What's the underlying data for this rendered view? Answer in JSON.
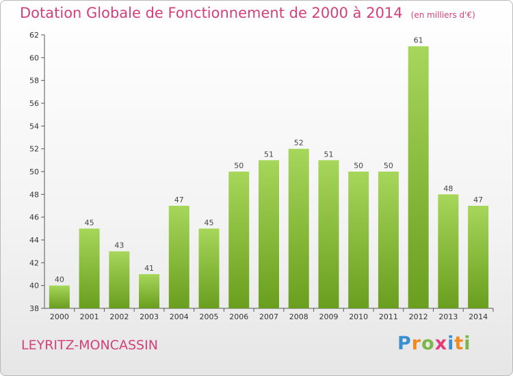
{
  "header": {
    "title": "Dotation Globale de Fonctionnement de 2000 à 2014",
    "unit": "(en milliers d'€)"
  },
  "footer": {
    "commune": "LEYRITZ-MONCASSIN",
    "logo": {
      "letters": [
        "P",
        "r",
        "o",
        "x",
        "i",
        "t",
        "i"
      ],
      "colors": [
        "#3a8fd1",
        "#f08a1c",
        "#7ab648",
        "#e23b7a",
        "#3a8fd1",
        "#f08a1c",
        "#7ab648"
      ]
    }
  },
  "colors": {
    "bar_top": "#a6d65a",
    "bar_bottom": "#6a9e1e",
    "accent": "#d2407a"
  },
  "chart_data": {
    "type": "bar",
    "categories": [
      "2000",
      "2001",
      "2002",
      "2003",
      "2004",
      "2005",
      "2006",
      "2007",
      "2008",
      "2009",
      "2010",
      "2011",
      "2012",
      "2013",
      "2014"
    ],
    "values": [
      40,
      45,
      43,
      41,
      47,
      45,
      50,
      51,
      52,
      51,
      50,
      50,
      61,
      48,
      47
    ],
    "data_labels": [
      "40",
      "45",
      "43",
      "41",
      "47",
      "45",
      "50",
      "51",
      "52",
      "51",
      "50",
      "50",
      "61",
      "48",
      "47"
    ],
    "y_ticks": [
      "38",
      "40",
      "42",
      "44",
      "46",
      "48",
      "50",
      "52",
      "54",
      "56",
      "58",
      "60",
      "62"
    ],
    "ylim": [
      38,
      62
    ],
    "grid": false,
    "legend": "none"
  }
}
